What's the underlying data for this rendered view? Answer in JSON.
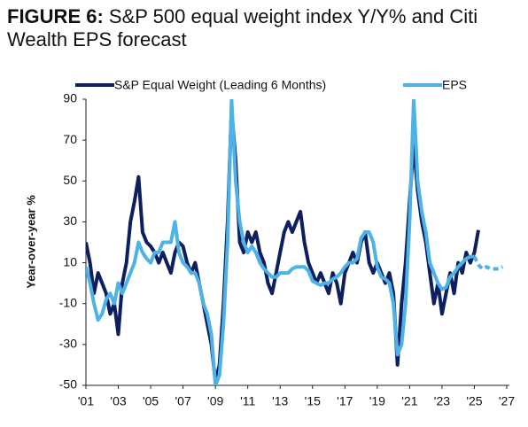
{
  "chart_data": {
    "type": "line",
    "title_label": "FIGURE 6:",
    "title": "S&P 500 equal weight index Y/Y% and Citi Wealth EPS forecast",
    "y_label": "Year-over-year %",
    "xlim": [
      2001,
      2027
    ],
    "xticks": [
      {
        "value": 2001,
        "label": "'01"
      },
      {
        "value": 2003,
        "label": "'03"
      },
      {
        "value": 2005,
        "label": "'05"
      },
      {
        "value": 2007,
        "label": "'07"
      },
      {
        "value": 2009,
        "label": "'09"
      },
      {
        "value": 2011,
        "label": "'11"
      },
      {
        "value": 2013,
        "label": "'13"
      },
      {
        "value": 2015,
        "label": "'15"
      },
      {
        "value": 2017,
        "label": "'17"
      },
      {
        "value": 2019,
        "label": "'19"
      },
      {
        "value": 2021,
        "label": "'21"
      },
      {
        "value": 2023,
        "label": "'23"
      },
      {
        "value": 2025,
        "label": "'25"
      },
      {
        "value": 2027,
        "label": "'27"
      }
    ],
    "ylim": [
      -50,
      90
    ],
    "yticks": [
      -50,
      -30,
      -10,
      10,
      30,
      50,
      70,
      90
    ],
    "x": [
      2001,
      2001.25,
      2001.5,
      2001.75,
      2002,
      2002.25,
      2002.5,
      2002.75,
      2003,
      2003.25,
      2003.5,
      2003.75,
      2004,
      2004.25,
      2004.5,
      2004.75,
      2005,
      2005.25,
      2005.5,
      2005.75,
      2006,
      2006.25,
      2006.5,
      2006.75,
      2007,
      2007.25,
      2007.5,
      2007.75,
      2008,
      2008.25,
      2008.5,
      2008.75,
      2009,
      2009.25,
      2009.5,
      2009.75,
      2010,
      2010.25,
      2010.5,
      2010.75,
      2011,
      2011.25,
      2011.5,
      2011.75,
      2012,
      2012.25,
      2012.5,
      2012.75,
      2013,
      2013.25,
      2013.5,
      2013.75,
      2014,
      2014.25,
      2014.5,
      2014.75,
      2015,
      2015.25,
      2015.5,
      2015.75,
      2016,
      2016.25,
      2016.5,
      2016.75,
      2017,
      2017.25,
      2017.5,
      2017.75,
      2018,
      2018.25,
      2018.5,
      2018.75,
      2019,
      2019.25,
      2019.5,
      2019.75,
      2020,
      2020.25,
      2020.5,
      2020.75,
      2021,
      2021.25,
      2021.5,
      2021.75,
      2022,
      2022.25,
      2022.5,
      2022.75,
      2023,
      2023.25,
      2023.5,
      2023.75,
      2024,
      2024.25,
      2024.5,
      2024.75,
      2025,
      2025.25,
      2025.5,
      2025.75,
      2026,
      2026.25,
      2026.5,
      2026.75
    ],
    "legend": "top",
    "series": [
      {
        "name": "S&P Equal Weight (Leading 6 Months)",
        "color": "#0d1f5e",
        "values": [
          20,
          10,
          -5,
          5,
          0,
          -5,
          -15,
          -10,
          -25,
          0,
          10,
          30,
          40,
          52,
          25,
          20,
          18,
          15,
          10,
          15,
          10,
          5,
          15,
          20,
          18,
          10,
          5,
          10,
          0,
          -10,
          -20,
          -30,
          -48,
          -40,
          -10,
          30,
          85,
          60,
          20,
          15,
          25,
          20,
          25,
          15,
          10,
          0,
          -5,
          5,
          15,
          25,
          30,
          25,
          30,
          35,
          20,
          10,
          5,
          0,
          5,
          0,
          -5,
          5,
          0,
          -10,
          5,
          10,
          15,
          10,
          20,
          25,
          10,
          5,
          10,
          5,
          0,
          5,
          -5,
          -40,
          -10,
          10,
          40,
          68,
          45,
          30,
          20,
          5,
          -10,
          0,
          -15,
          -5,
          5,
          -5,
          10,
          5,
          15,
          10,
          15,
          26,
          null,
          null,
          null,
          null,
          null,
          null
        ]
      },
      {
        "name": "EPS",
        "color": "#4db3e6",
        "forecast_from": 2025,
        "values": [
          8,
          0,
          -10,
          -18,
          -15,
          -8,
          -5,
          -10,
          0,
          -5,
          0,
          5,
          10,
          20,
          15,
          12,
          10,
          15,
          15,
          20,
          20,
          20,
          30,
          15,
          10,
          8,
          5,
          5,
          0,
          -10,
          -15,
          -25,
          -50,
          -45,
          -20,
          20,
          90,
          50,
          30,
          20,
          15,
          18,
          15,
          10,
          7,
          5,
          3,
          3,
          5,
          5,
          5,
          7,
          8,
          8,
          8,
          6,
          1,
          0,
          -1,
          0,
          0,
          2,
          3,
          5,
          8,
          10,
          10,
          12,
          22,
          25,
          25,
          20,
          8,
          3,
          2,
          0,
          -10,
          -35,
          -30,
          -10,
          30,
          90,
          50,
          35,
          25,
          10,
          5,
          0,
          -3,
          -2,
          3,
          5,
          8,
          10,
          12,
          13,
          13,
          9,
          7,
          8,
          7,
          7,
          7,
          8
        ]
      }
    ]
  }
}
